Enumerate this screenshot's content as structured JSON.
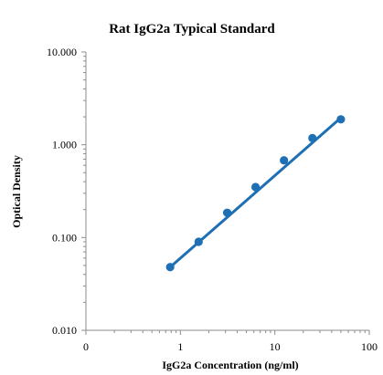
{
  "chart_data": {
    "type": "scatter",
    "title": "Rat IgG2a Typical Standard",
    "xlabel": "IgG2a Concentration (ng/ml)",
    "ylabel": "Optical Density",
    "x_scale": "log",
    "y_scale": "log",
    "xlim": [
      0.1,
      100
    ],
    "ylim": [
      0.01,
      10
    ],
    "x_ticks": [
      0.1,
      1,
      10,
      100
    ],
    "x_tick_labels": [
      "0",
      "1",
      "10",
      "100"
    ],
    "y_ticks": [
      0.01,
      0.1,
      1,
      10
    ],
    "y_tick_labels": [
      "0.010",
      "0.100",
      "1.000",
      "10.000"
    ],
    "grid": false,
    "legend": "none",
    "series": [
      {
        "x": [
          0.78,
          1.56,
          3.13,
          6.25,
          12.5,
          25,
          50
        ],
        "y": [
          0.048,
          0.09,
          0.185,
          0.35,
          0.68,
          1.18,
          1.88
        ],
        "color": "#1f6fb4",
        "marker": "circle"
      }
    ],
    "trendline": {
      "type": "power",
      "x_range": [
        0.78,
        50
      ],
      "y_range": [
        0.048,
        1.95
      ],
      "color": "#1f6fb4"
    }
  }
}
